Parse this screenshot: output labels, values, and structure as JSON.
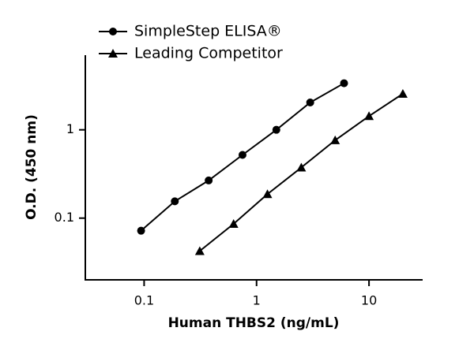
{
  "chart_data": {
    "type": "line",
    "log_x": true,
    "log_y": true,
    "xlabel": "Human THBS2 (ng/mL)",
    "ylabel": "O.D. (450 nm)",
    "xlim": [
      0.03,
      30
    ],
    "xticks": [
      0.1,
      1,
      10
    ],
    "ylim": [
      0.02,
      7
    ],
    "yticks": [
      0.1,
      1
    ],
    "legend": "top-left",
    "series": [
      {
        "name": "SimpleStep ELISA®",
        "color": "#000000",
        "marker": "circle",
        "x": [
          0.094,
          0.1875,
          0.375,
          0.75,
          1.5,
          3,
          6
        ],
        "values": [
          0.072,
          0.155,
          0.267,
          0.52,
          1.0,
          2.04,
          3.37
        ]
      },
      {
        "name": "Leading Competitor",
        "color": "#000000",
        "marker": "triangle",
        "x": [
          0.3125,
          0.625,
          1.25,
          2.5,
          5,
          10,
          20
        ],
        "values": [
          0.0424,
          0.086,
          0.187,
          0.374,
          0.762,
          1.43,
          2.56
        ]
      }
    ]
  }
}
